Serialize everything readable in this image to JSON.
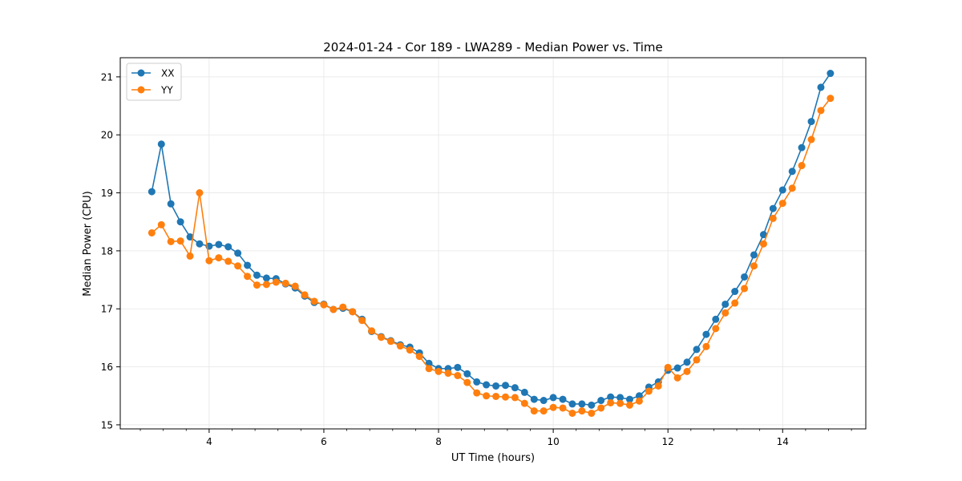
{
  "chart_data": {
    "type": "line",
    "title": "2024-01-24 - Cor 189 - LWA289 - Median Power vs. Time",
    "xlabel": "UT Time (hours)",
    "ylabel": "Median Power (CPU)",
    "xlim": [
      2.45,
      15.45
    ],
    "ylim": [
      14.93,
      21.33
    ],
    "xticks": [
      4,
      6,
      8,
      10,
      12,
      14
    ],
    "yticks": [
      15,
      16,
      17,
      18,
      19,
      20,
      21
    ],
    "grid": true,
    "legend_position": "top-left",
    "x": [
      3.0,
      3.167,
      3.333,
      3.5,
      3.667,
      3.833,
      4.0,
      4.167,
      4.333,
      4.5,
      4.667,
      4.833,
      5.0,
      5.167,
      5.333,
      5.5,
      5.667,
      5.833,
      6.0,
      6.167,
      6.333,
      6.5,
      6.667,
      6.833,
      7.0,
      7.167,
      7.333,
      7.5,
      7.667,
      7.833,
      8.0,
      8.167,
      8.333,
      8.5,
      8.667,
      8.833,
      9.0,
      9.167,
      9.333,
      9.5,
      9.667,
      9.833,
      10.0,
      10.167,
      10.333,
      10.5,
      10.667,
      10.833,
      11.0,
      11.167,
      11.333,
      11.5,
      11.667,
      11.833,
      12.0,
      12.167,
      12.333,
      12.5,
      12.667,
      12.833,
      13.0,
      13.167,
      13.333,
      13.5,
      13.667,
      13.833,
      14.0,
      14.167,
      14.333,
      14.5,
      14.667,
      14.833
    ],
    "series": [
      {
        "name": "XX",
        "color": "#1f77b4",
        "values": [
          19.02,
          19.84,
          18.81,
          18.5,
          18.24,
          18.12,
          18.08,
          18.11,
          18.07,
          17.96,
          17.75,
          17.58,
          17.53,
          17.52,
          17.43,
          17.36,
          17.22,
          17.11,
          17.08,
          16.99,
          17.01,
          16.95,
          16.82,
          16.61,
          16.52,
          16.45,
          16.38,
          16.34,
          16.24,
          16.06,
          15.97,
          15.97,
          15.99,
          15.88,
          15.74,
          15.69,
          15.67,
          15.68,
          15.64,
          15.56,
          15.44,
          15.42,
          15.47,
          15.44,
          15.36,
          15.36,
          15.34,
          15.42,
          15.48,
          15.47,
          15.44,
          15.5,
          15.65,
          15.74,
          15.94,
          15.98,
          16.08,
          16.3,
          16.56,
          16.82,
          17.08,
          17.3,
          17.55,
          17.93,
          18.28,
          18.73,
          19.05,
          19.37,
          19.78,
          20.23,
          20.82,
          21.06
        ]
      },
      {
        "name": "YY",
        "color": "#ff7f0e",
        "values": [
          18.31,
          18.45,
          18.16,
          18.17,
          17.91,
          19.0,
          17.83,
          17.88,
          17.82,
          17.74,
          17.56,
          17.41,
          17.42,
          17.46,
          17.44,
          17.39,
          17.24,
          17.13,
          17.07,
          16.99,
          17.03,
          16.95,
          16.8,
          16.62,
          16.51,
          16.44,
          16.36,
          16.29,
          16.18,
          15.97,
          15.92,
          15.89,
          15.85,
          15.73,
          15.55,
          15.5,
          15.49,
          15.48,
          15.47,
          15.37,
          15.24,
          15.24,
          15.3,
          15.29,
          15.2,
          15.24,
          15.2,
          15.29,
          15.38,
          15.37,
          15.34,
          15.41,
          15.58,
          15.67,
          15.99,
          15.81,
          15.92,
          16.12,
          16.35,
          16.66,
          16.93,
          17.1,
          17.35,
          17.74,
          18.12,
          18.56,
          18.82,
          19.08,
          19.47,
          19.92,
          20.42,
          20.63
        ]
      }
    ]
  }
}
